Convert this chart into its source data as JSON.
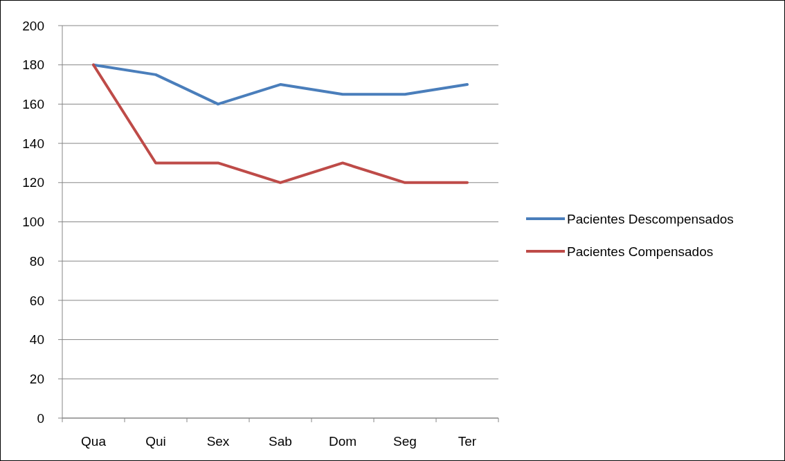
{
  "chart_data": {
    "type": "line",
    "categories": [
      "Qua",
      "Qui",
      "Sex",
      "Sab",
      "Dom",
      "Seg",
      "Ter"
    ],
    "series": [
      {
        "name": "Pacientes Descompensados",
        "color": "#4a7ebb",
        "values": [
          180,
          175,
          160,
          170,
          165,
          165,
          170
        ]
      },
      {
        "name": "Pacientes Compensados",
        "color": "#be4b48",
        "values": [
          180,
          130,
          130,
          120,
          130,
          120,
          120
        ]
      }
    ],
    "ylim": [
      0,
      200
    ],
    "yticks": [
      0,
      20,
      40,
      60,
      80,
      100,
      120,
      140,
      160,
      180,
      200
    ],
    "grid": "y",
    "legend": "right",
    "marker": "none",
    "line_style": "solid"
  }
}
